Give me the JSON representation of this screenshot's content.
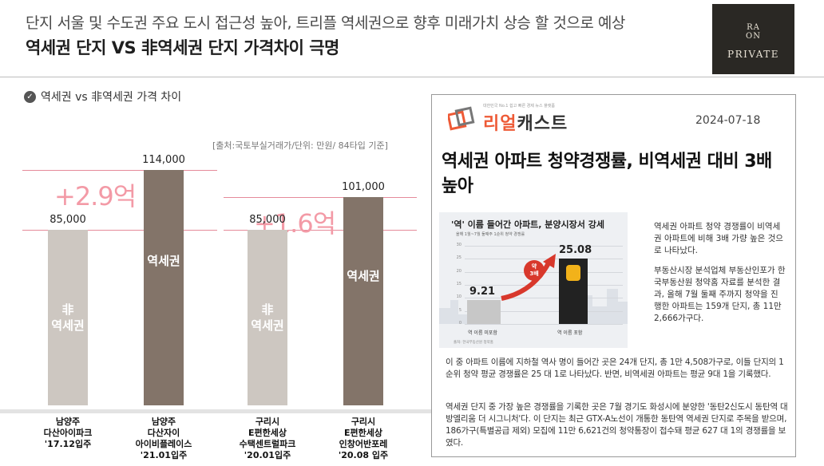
{
  "header": {
    "subtitle": "단지 서울 및 수도권 주요 도시 접근성 높아, 트리플 역세권으로 향후 미래가치 상승 할 것으로 예상",
    "title": "역세권 단지 VS 非역세권 단지 가격차이 극명"
  },
  "logo": {
    "line1": "RA",
    "line2": "ON",
    "line3": "PRIVATE"
  },
  "section": {
    "title": "역세권 vs 非역세권 가격 차이",
    "source": "[출처:국토부실거래가/단위: 만원/ 84타입 기준]"
  },
  "chart_data": {
    "type": "bar",
    "title": "역세권 vs 非역세권 가격 차이",
    "unit": "만원",
    "ylim": [
      0,
      120000
    ],
    "groups": [
      {
        "difference": "+2.9억",
        "bars": [
          {
            "value": 85000,
            "value_label": "85,000",
            "label_line1": "非",
            "label_line2": "역세권",
            "category": [
              "남양주",
              "다산아이파크",
              "'17.12입주"
            ],
            "kind": "non"
          },
          {
            "value": 114000,
            "value_label": "114,000",
            "label_line1": "역세권",
            "label_line2": "",
            "category": [
              "남양주",
              "다산자이",
              "아이비플레이스",
              "'21.01입주"
            ],
            "kind": "near"
          }
        ]
      },
      {
        "difference": "+1.6억",
        "bars": [
          {
            "value": 85000,
            "value_label": "85,000",
            "label_line1": "非",
            "label_line2": "역세권",
            "category": [
              "구리시",
              "E편한세상",
              "수택센트럴파크",
              "'20.01입주"
            ],
            "kind": "non"
          },
          {
            "value": 101000,
            "value_label": "101,000",
            "label_line1": "역세권",
            "label_line2": "",
            "category": [
              "구리시",
              "E편한세상",
              "인창어반포레",
              "'20.08 입주"
            ],
            "kind": "near"
          }
        ]
      }
    ]
  },
  "news": {
    "tagline": "대한민국 No.1 쉽고 빠른 경제 뉴스 플랫폼",
    "brand_a": "리얼",
    "brand_b": "캐스트",
    "date": "2024-07-18",
    "headline": "역세권 아파트 청약경쟁률, 비역세권 대비 3배 높아",
    "inner_chart": {
      "title": "'역' 이름 들어간 아파트, 분양시장서 강세",
      "subtitle": "올해 1월~7월 둘째주 1순위 청약 경쟁률",
      "ticks": [
        "30",
        "25",
        "20",
        "15",
        "10",
        "5",
        "0"
      ],
      "values": [
        9.21,
        25.08
      ],
      "value_labels": [
        "9.21",
        "25.08"
      ],
      "categories": [
        "역 이름 미포함",
        "역 이름 포함"
      ],
      "badge_line1": "약",
      "badge_line2": "3배",
      "source": "출처: 한국부동산원 청약홈"
    },
    "side_para1": "역세권 아파트 청약 경쟁률이 비역세권 아파트에 비해 3배 가량 높은 것으로 나타났다.",
    "side_para2": "부동산시장 분석업체 부동산인포가 한국부동산원 청약홈 자료를 분석한 결과, 올해 7월 둘째 주까지 청약을 진행한 아파트는 159개 단지, 총 11만 2,666가구다.",
    "body_para1": "이 중 아파트 이름에 지하철 역사 명이 들어간 곳은 24개 단지, 총 1만 4,508가구로, 이들 단지의 1순위 청약 평균 경쟁률은 25 대 1로 나타났다. 반면, 비역세권 아파트는 평균 9대 1을 기록했다.",
    "body_para2": "역세권 단지 중 가장 높은 경쟁률을 기록한 곳은 7월 경기도 화성시에 분양한 '동탄2신도시 동탄역 대방엘리움 더 시그니처'다. 이 단지는 최근 GTX-A노선이 개통한 동탄역 역세권 단지로 주목을 받으며, 186가구(특별공급 제외) 모집에 11만 6,621건의 청약통장이 접수돼 평균 627 대 1의 경쟁률을 보였다."
  },
  "colors": {
    "non_bar": "#cdc7c1",
    "near_bar": "#837469",
    "diff_text": "#f39aa6",
    "brand": "#ee5a36"
  }
}
